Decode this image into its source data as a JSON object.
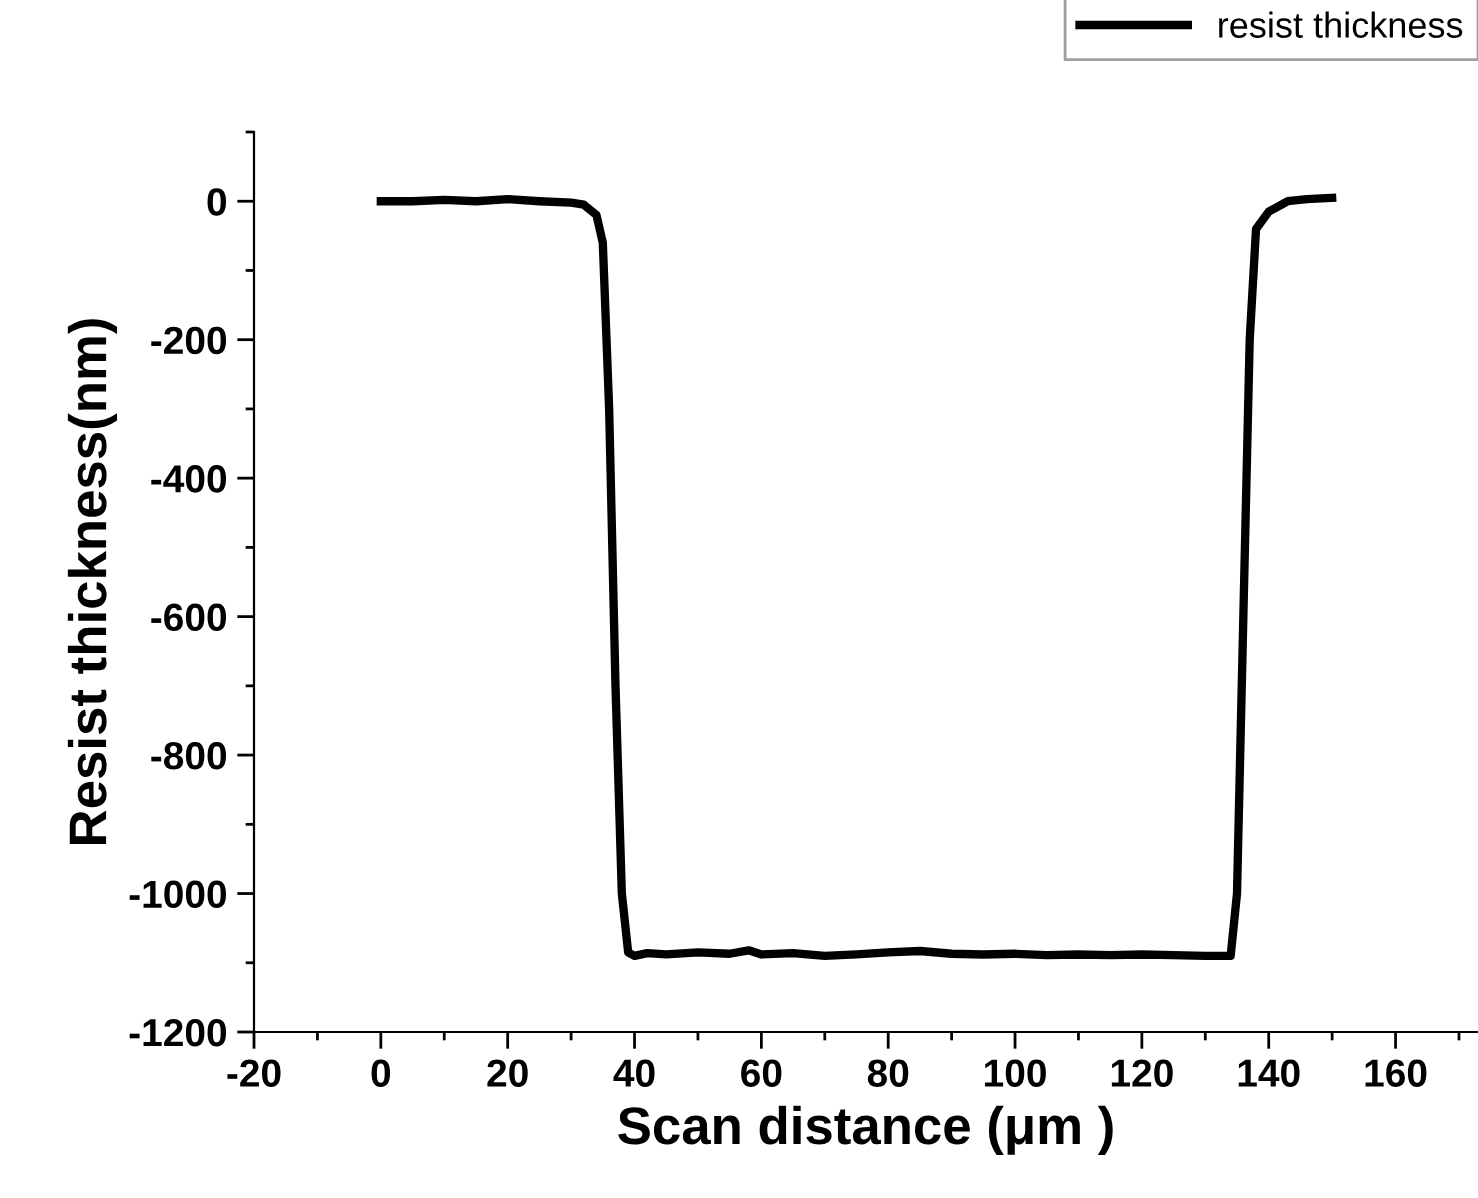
{
  "chart_data": {
    "type": "line",
    "xlabel": "Scan distance (μm )",
    "ylabel": "Resist thickness(nm)",
    "xlim": [
      -20,
      173
    ],
    "ylim": [
      -1200,
      100
    ],
    "xticks": [
      -20,
      0,
      20,
      40,
      60,
      80,
      100,
      120,
      140,
      160
    ],
    "yticks": [
      -1200,
      -1000,
      -800,
      -600,
      -400,
      -200,
      0
    ],
    "grid": false,
    "legend": "top right",
    "line_style": "solid",
    "marker": "none",
    "series": [
      {
        "name": "resist thickness",
        "color": "#000000",
        "x": [
          0,
          5,
          10,
          15,
          20,
          25,
          30,
          32,
          34,
          35,
          36,
          37,
          38,
          39,
          40,
          42,
          45,
          50,
          55,
          58,
          60,
          65,
          70,
          75,
          80,
          85,
          90,
          95,
          100,
          105,
          110,
          115,
          120,
          125,
          130,
          134,
          135,
          136,
          137,
          138,
          140,
          143,
          146,
          150
        ],
        "values": [
          0,
          0,
          2,
          0,
          3,
          0,
          -2,
          -5,
          -20,
          -60,
          -300,
          -700,
          -1000,
          -1085,
          -1090,
          -1086,
          -1088,
          -1085,
          -1087,
          -1082,
          -1088,
          -1086,
          -1090,
          -1088,
          -1085,
          -1083,
          -1087,
          -1088,
          -1087,
          -1089,
          -1088,
          -1089,
          -1088,
          -1089,
          -1090,
          -1090,
          -1000,
          -600,
          -200,
          -40,
          -15,
          0,
          3,
          5
        ]
      }
    ]
  }
}
